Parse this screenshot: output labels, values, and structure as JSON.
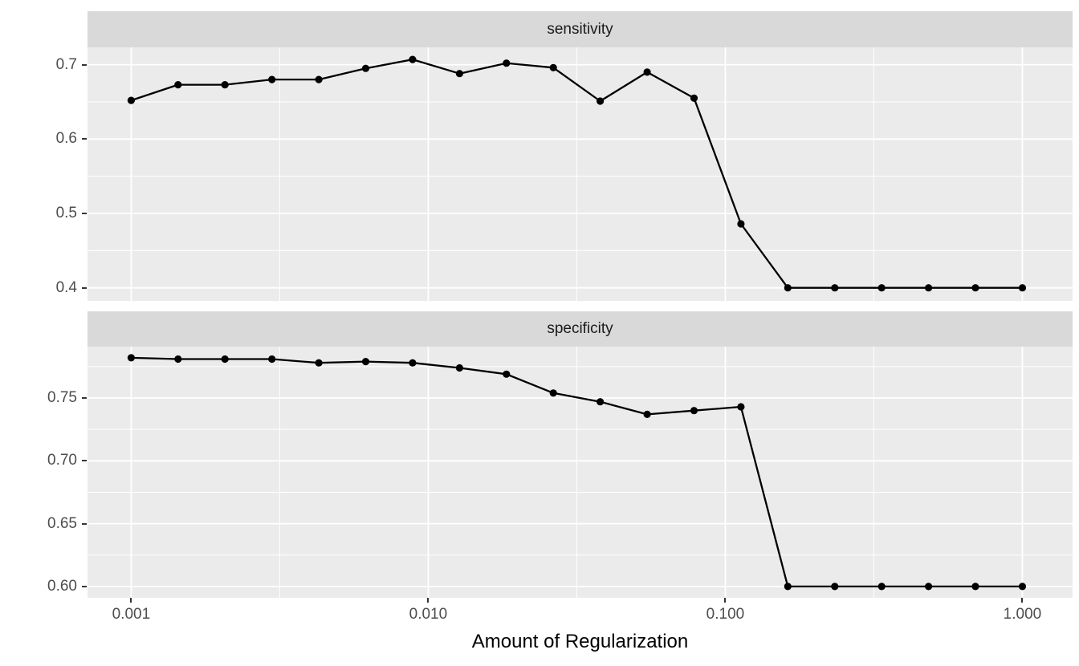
{
  "chart_data": {
    "type": "line",
    "title": "",
    "xlabel": "Amount of Regularization",
    "ylabel": "",
    "x_scale": "log10",
    "grid": true,
    "legend": "none",
    "series_color": "#000000",
    "x": [
      0.001,
      0.0014384,
      0.0020691,
      0.0029764,
      0.0042813,
      0.0061585,
      0.0088587,
      0.012743,
      0.01833,
      0.026367,
      0.037927,
      0.054556,
      0.078476,
      0.112884,
      0.162378,
      0.233572,
      0.335982,
      0.483293,
      0.695193,
      1.0
    ],
    "x_ticks": {
      "values": [
        0.001,
        0.01,
        0.1,
        1
      ],
      "labels": [
        "0.001",
        "0.010",
        "0.100",
        "1.000"
      ]
    },
    "x_minor": [
      0.0031623,
      0.031623,
      0.31623
    ],
    "xlim_log10": [
      -3.147,
      0.169
    ],
    "facets": [
      {
        "label": "sensitivity",
        "values": [
          0.652,
          0.673,
          0.673,
          0.68,
          0.68,
          0.695,
          0.707,
          0.688,
          0.702,
          0.696,
          0.651,
          0.69,
          0.655,
          0.486,
          0.4,
          0.4,
          0.4,
          0.4,
          0.4,
          0.4
        ],
        "y_ticks": {
          "values": [
            0.4,
            0.5,
            0.6,
            0.7
          ],
          "labels": [
            "0.4",
            "0.5",
            "0.6",
            "0.7"
          ]
        },
        "y_minor": [
          0.45,
          0.55,
          0.65
        ],
        "ylim": [
          0.3824,
          0.7233
        ]
      },
      {
        "label": "specificity",
        "values": [
          0.782,
          0.781,
          0.781,
          0.781,
          0.778,
          0.779,
          0.778,
          0.774,
          0.769,
          0.754,
          0.747,
          0.737,
          0.74,
          0.743,
          0.6,
          0.6,
          0.6,
          0.6,
          0.6,
          0.6
        ],
        "y_ticks": {
          "values": [
            0.6,
            0.65,
            0.7,
            0.75
          ],
          "labels": [
            "0.60",
            "0.65",
            "0.70",
            "0.75"
          ]
        },
        "y_minor": [
          0.625,
          0.675,
          0.725,
          0.775
        ],
        "ylim": [
          0.591,
          0.7909
        ]
      }
    ]
  },
  "style": {
    "panel_bg": "#EBEBEB",
    "strip_bg": "#D9D9D9",
    "grid_color": "#FFFFFF",
    "line_color": "#000000",
    "point_color": "#000000",
    "tick_mark_color": "#333333",
    "tick_label_color": "#4D4D4D",
    "strip_text_color": "#1A1A1A",
    "axis_title_color": "#000000"
  }
}
